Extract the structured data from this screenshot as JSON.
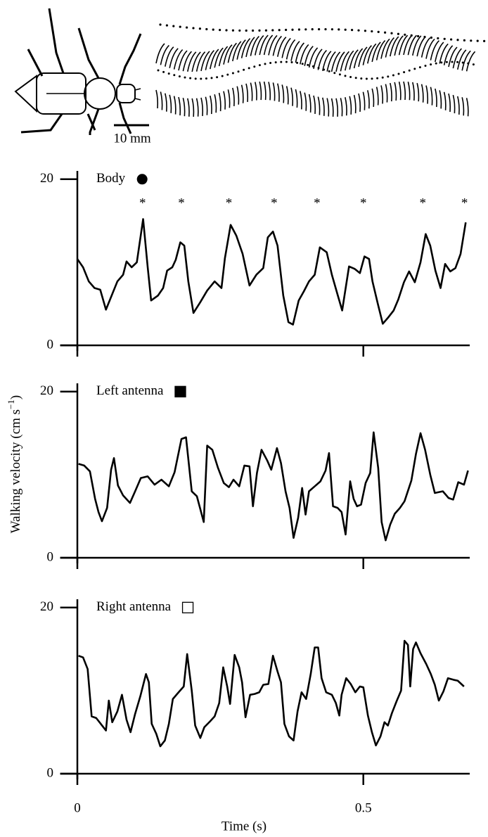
{
  "figure": {
    "ylabel": "Walking velocity (cm s",
    "ylabel_sup": "−1",
    "ylabel_end": ")",
    "xlabel": "Time (s)",
    "scale_bar_label": "10 mm"
  },
  "chart_data": [
    {
      "type": "line",
      "legend": "upper left",
      "xlim": [
        -0.03,
        0.686
      ],
      "xticks": [
        0,
        0.5
      ],
      "ylim": [
        0,
        21
      ],
      "yticks": [
        0,
        20
      ],
      "series": [
        {
          "name": "Body",
          "color": "#000000",
          "marker": "filled circle",
          "x": [
            0,
            0.01,
            0.02,
            0.03,
            0.04,
            0.05,
            0.06,
            0.07,
            0.08,
            0.086,
            0.095,
            0.104,
            0.115,
            0.123,
            0.129,
            0.141,
            0.15,
            0.157,
            0.166,
            0.172,
            0.18,
            0.187,
            0.194,
            0.203,
            0.215,
            0.227,
            0.24,
            0.252,
            0.258,
            0.268,
            0.278,
            0.289,
            0.301,
            0.313,
            0.325,
            0.333,
            0.342,
            0.35,
            0.36,
            0.369,
            0.377,
            0.387,
            0.396,
            0.405,
            0.415,
            0.424,
            0.436,
            0.445,
            0.455,
            0.463,
            0.475,
            0.485,
            0.494,
            0.502,
            0.51,
            0.516,
            0.525,
            0.534,
            0.544,
            0.553,
            0.561,
            0.571,
            0.58,
            0.59,
            0.6,
            0.609,
            0.617,
            0.626,
            0.635,
            0.643,
            0.652,
            0.661,
            0.67,
            0.679
          ],
          "values": [
            10.4,
            9.4,
            7.7,
            6.9,
            6.7,
            4.3,
            6.0,
            7.7,
            8.5,
            10.1,
            9.4,
            10.0,
            15.2,
            9.4,
            5.4,
            6.0,
            6.9,
            9.0,
            9.4,
            10.3,
            12.4,
            12.0,
            7.7,
            3.9,
            5.2,
            6.6,
            7.7,
            6.9,
            10.5,
            14.5,
            13.2,
            11.0,
            7.2,
            8.5,
            9.3,
            13.0,
            13.7,
            12.0,
            6.0,
            2.8,
            2.5,
            5.4,
            6.5,
            7.7,
            8.5,
            11.8,
            11.2,
            8.5,
            6.1,
            4.2,
            9.5,
            9.2,
            8.7,
            10.7,
            10.4,
            7.7,
            5.1,
            2.6,
            3.4,
            4.2,
            5.5,
            7.6,
            8.9,
            7.6,
            10.0,
            13.4,
            12.0,
            9.0,
            6.9,
            9.8,
            8.9,
            9.3,
            11.0,
            14.8
          ]
        }
      ],
      "annotations": [
        {
          "x": 0.114,
          "y": 17,
          "text": "*"
        },
        {
          "x": 0.182,
          "y": 17,
          "text": "*"
        },
        {
          "x": 0.265,
          "y": 17,
          "text": "*"
        },
        {
          "x": 0.344,
          "y": 17,
          "text": "*"
        },
        {
          "x": 0.419,
          "y": 17,
          "text": "*"
        },
        {
          "x": 0.5,
          "y": 17,
          "text": "*"
        },
        {
          "x": 0.604,
          "y": 17,
          "text": "*"
        },
        {
          "x": 0.677,
          "y": 17,
          "text": "*"
        }
      ]
    },
    {
      "type": "line",
      "legend": "upper left",
      "xlim": [
        -0.03,
        0.686
      ],
      "xticks": [
        0,
        0.5
      ],
      "ylim": [
        0,
        21
      ],
      "yticks": [
        0,
        20
      ],
      "series": [
        {
          "name": "Left antenna",
          "color": "#000000",
          "marker": "filled square",
          "x": [
            0.002,
            0.012,
            0.022,
            0.031,
            0.037,
            0.043,
            0.052,
            0.059,
            0.064,
            0.071,
            0.08,
            0.092,
            0.101,
            0.111,
            0.123,
            0.135,
            0.147,
            0.16,
            0.17,
            0.182,
            0.19,
            0.2,
            0.209,
            0.221,
            0.227,
            0.236,
            0.246,
            0.256,
            0.265,
            0.273,
            0.283,
            0.292,
            0.301,
            0.307,
            0.314,
            0.322,
            0.332,
            0.339,
            0.349,
            0.356,
            0.364,
            0.371,
            0.378,
            0.386,
            0.393,
            0.399,
            0.405,
            0.415,
            0.425,
            0.434,
            0.44,
            0.447,
            0.455,
            0.462,
            0.469,
            0.477,
            0.483,
            0.489,
            0.496,
            0.504,
            0.512,
            0.518,
            0.526,
            0.532,
            0.539,
            0.547,
            0.555,
            0.564,
            0.572,
            0.584,
            0.592,
            0.6,
            0.608,
            0.617,
            0.625,
            0.639,
            0.649,
            0.657,
            0.666,
            0.676,
            0.683
          ],
          "values": [
            11.3,
            11.1,
            10.4,
            7.1,
            5.5,
            4.4,
            6.0,
            10.6,
            12.0,
            8.7,
            7.5,
            6.6,
            8.0,
            9.6,
            9.8,
            8.8,
            9.4,
            8.6,
            10.3,
            14.3,
            14.5,
            8.0,
            7.4,
            4.3,
            13.5,
            13.0,
            10.8,
            9.0,
            8.5,
            9.4,
            8.6,
            11.1,
            11.0,
            6.2,
            10.2,
            13.0,
            11.7,
            10.6,
            13.2,
            11.4,
            8.0,
            6.0,
            2.4,
            4.8,
            8.4,
            5.2,
            8.0,
            8.6,
            9.2,
            10.5,
            12.6,
            6.2,
            6.0,
            5.5,
            2.8,
            9.2,
            7.1,
            6.2,
            6.4,
            9.0,
            10.2,
            15.1,
            10.8,
            4.3,
            2.1,
            4.0,
            5.3,
            6.0,
            6.8,
            9.3,
            12.5,
            15.0,
            13.0,
            10.0,
            7.8,
            8.0,
            7.2,
            7.0,
            9.1,
            8.8,
            10.5
          ]
        }
      ]
    },
    {
      "type": "line",
      "legend": "upper left",
      "xlim": [
        -0.03,
        0.686
      ],
      "xticks": [
        0,
        0.5
      ],
      "ylim": [
        0,
        21
      ],
      "yticks": [
        0,
        20
      ],
      "series": [
        {
          "name": "Right antenna",
          "color": "#000000",
          "marker": "open square",
          "x": [
            0.002,
            0.01,
            0.018,
            0.025,
            0.033,
            0.041,
            0.05,
            0.055,
            0.061,
            0.07,
            0.078,
            0.086,
            0.093,
            0.101,
            0.11,
            0.12,
            0.125,
            0.13,
            0.138,
            0.145,
            0.153,
            0.16,
            0.167,
            0.177,
            0.186,
            0.192,
            0.2,
            0.206,
            0.215,
            0.222,
            0.232,
            0.24,
            0.248,
            0.255,
            0.262,
            0.267,
            0.275,
            0.283,
            0.288,
            0.294,
            0.302,
            0.31,
            0.318,
            0.325,
            0.334,
            0.342,
            0.35,
            0.356,
            0.362,
            0.37,
            0.378,
            0.385,
            0.392,
            0.4,
            0.408,
            0.415,
            0.421,
            0.427,
            0.435,
            0.445,
            0.452,
            0.458,
            0.462,
            0.47,
            0.478,
            0.486,
            0.494,
            0.5,
            0.508,
            0.515,
            0.522,
            0.53,
            0.537,
            0.543,
            0.55,
            0.558,
            0.566,
            0.572,
            0.578,
            0.582,
            0.587,
            0.592,
            0.6,
            0.61,
            0.618,
            0.625,
            0.632,
            0.64,
            0.648,
            0.658,
            0.665,
            0.676
          ],
          "values": [
            14.2,
            14.0,
            12.6,
            6.9,
            6.7,
            6.0,
            5.2,
            8.8,
            6.2,
            7.5,
            9.5,
            6.5,
            5.0,
            7.2,
            9.3,
            12.0,
            11.0,
            6.0,
            4.8,
            3.3,
            4.0,
            6.0,
            9.0,
            9.8,
            10.5,
            14.4,
            10.0,
            5.8,
            4.3,
            5.6,
            6.3,
            6.9,
            8.5,
            12.8,
            10.5,
            8.4,
            14.3,
            12.8,
            11.0,
            6.8,
            9.5,
            9.6,
            9.8,
            10.7,
            10.8,
            14.2,
            12.3,
            11.0,
            6.0,
            4.5,
            4.0,
            7.5,
            9.8,
            9.0,
            12.0,
            15.2,
            15.2,
            11.5,
            9.8,
            9.5,
            8.5,
            7.0,
            9.5,
            11.5,
            10.8,
            9.8,
            10.5,
            10.4,
            7.0,
            5.0,
            3.4,
            4.5,
            6.2,
            5.8,
            7.3,
            8.7,
            10.0,
            16.0,
            15.5,
            10.5,
            15.0,
            15.8,
            14.5,
            13.2,
            12.0,
            10.7,
            8.8,
            9.9,
            11.5,
            11.3,
            11.2,
            10.5
          ]
        }
      ]
    }
  ]
}
